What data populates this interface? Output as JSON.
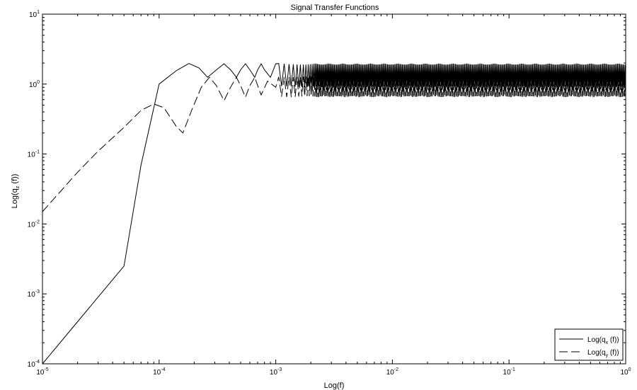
{
  "chart_data": {
    "type": "line",
    "title": "Signal Transfer Functions",
    "xlabel": "Log(f)",
    "ylabel": {
      "base": "Log(q",
      "sub": "z",
      "tail": " (f))"
    },
    "xscale": "log",
    "yscale": "log",
    "xlim": [
      1e-05,
      1
    ],
    "ylim": [
      0.0001,
      10
    ],
    "grid": false,
    "legend_position": "bottom-right",
    "x_ticks": [
      {
        "value": 1e-05,
        "base": "10",
        "exp": "-5"
      },
      {
        "value": 0.0001,
        "base": "10",
        "exp": "-4"
      },
      {
        "value": 0.001,
        "base": "10",
        "exp": "-3"
      },
      {
        "value": 0.01,
        "base": "10",
        "exp": "-2"
      },
      {
        "value": 0.1,
        "base": "10",
        "exp": "-1"
      },
      {
        "value": 1,
        "base": "10",
        "exp": "0"
      }
    ],
    "y_ticks": [
      {
        "value": 0.0001,
        "base": "10",
        "exp": "-4"
      },
      {
        "value": 0.001,
        "base": "10",
        "exp": "-3"
      },
      {
        "value": 0.01,
        "base": "10",
        "exp": "-2"
      },
      {
        "value": 0.1,
        "base": "10",
        "exp": "-1"
      },
      {
        "value": 1,
        "base": "10",
        "exp": "0"
      },
      {
        "value": 10,
        "base": "10",
        "exp": "1"
      }
    ],
    "series": [
      {
        "name": "Log(q_x (f))",
        "legend": {
          "base": "Log(q",
          "sub": "x",
          "tail": " (f))"
        },
        "style": "solid",
        "color": "#000000",
        "points": [
          [
            1e-05,
            0.0001
          ],
          [
            2e-05,
            0.0004
          ],
          [
            3e-05,
            0.0009
          ],
          [
            5e-05,
            0.0025
          ],
          [
            7e-05,
            0.07
          ],
          [
            0.0001,
            1.0
          ],
          [
            0.00014,
            1.55
          ],
          [
            0.00018,
            1.97
          ],
          [
            0.00022,
            1.7
          ],
          [
            0.00026,
            1.25
          ],
          [
            0.00031,
            1.6
          ],
          [
            0.00036,
            1.95
          ],
          [
            0.00041,
            1.6
          ],
          [
            0.00046,
            1.25
          ],
          [
            0.0005,
            1.6
          ],
          [
            0.00055,
            1.95
          ],
          [
            0.0006,
            1.6
          ],
          [
            0.00066,
            1.25
          ],
          [
            0.0007,
            1.6
          ],
          [
            0.00075,
            1.95
          ],
          [
            0.0008,
            1.6
          ],
          [
            0.0009,
            1.25
          ],
          [
            0.001,
            1.95
          ]
        ],
        "oscillation_band": {
          "x_from": 0.001,
          "x_to": 1,
          "y_min": 0.9,
          "y_max": 1.97
        }
      },
      {
        "name": "Log(q_y (f))",
        "legend": {
          "base": "Log(q",
          "sub": "y",
          "tail": " (f))"
        },
        "style": "dashed",
        "color": "#000000",
        "points": [
          [
            1e-05,
            0.015
          ],
          [
            2e-05,
            0.055
          ],
          [
            3e-05,
            0.11
          ],
          [
            5e-05,
            0.24
          ],
          [
            7e-05,
            0.42
          ],
          [
            9e-05,
            0.52
          ],
          [
            0.00011,
            0.46
          ],
          [
            0.00014,
            0.25
          ],
          [
            0.00016,
            0.2
          ],
          [
            0.00019,
            0.42
          ],
          [
            0.00023,
            0.9
          ],
          [
            0.00027,
            1.25
          ],
          [
            0.00031,
            0.95
          ],
          [
            0.00036,
            0.58
          ],
          [
            0.00041,
            0.9
          ],
          [
            0.00046,
            1.25
          ],
          [
            0.0005,
            0.95
          ],
          [
            0.00055,
            0.65
          ],
          [
            0.0006,
            0.95
          ],
          [
            0.00066,
            1.25
          ],
          [
            0.0007,
            0.95
          ],
          [
            0.00075,
            0.7
          ],
          [
            0.00085,
            1.1
          ],
          [
            0.001,
            0.9
          ]
        ],
        "oscillation_band": {
          "x_from": 0.001,
          "x_to": 1,
          "y_min": 0.65,
          "y_max": 1.3
        }
      }
    ]
  }
}
